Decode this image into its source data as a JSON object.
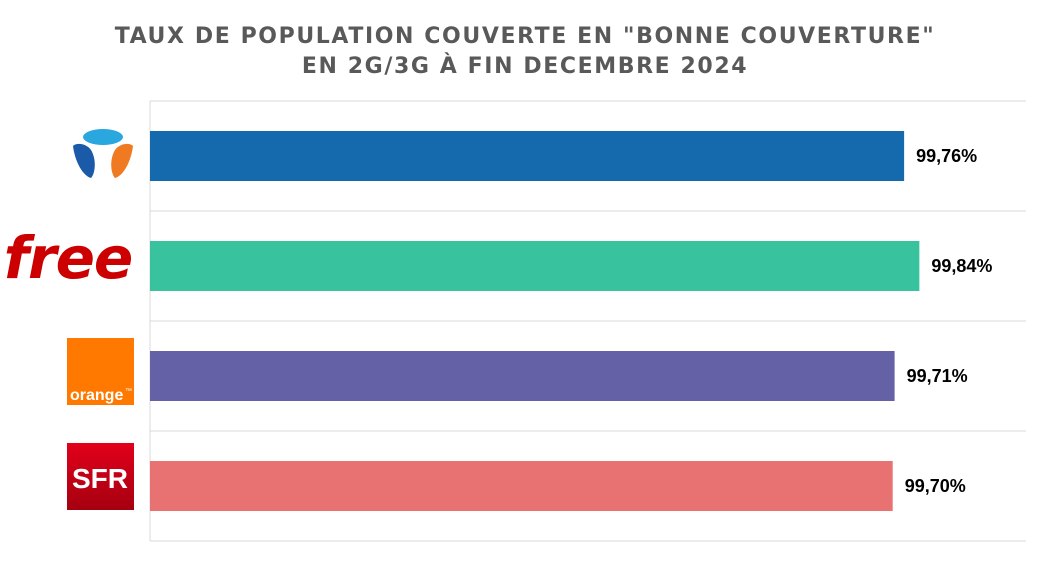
{
  "chart_data": {
    "type": "bar",
    "orientation": "horizontal",
    "title": "TAUX DE POPULATION COUVERTE EN \"BONNE COUVERTURE\"",
    "subtitle": "EN 2G/3G À FIN DECEMBRE 2024",
    "categories": [
      "Bouygues Telecom",
      "free",
      "orange",
      "SFR"
    ],
    "values": [
      99.76,
      99.84,
      99.71,
      99.7
    ],
    "value_labels": [
      "99,76%",
      "99,84%",
      "99,71%",
      "99,70%"
    ],
    "colors": [
      "#156aae",
      "#38c29e",
      "#6561a7",
      "#e87172"
    ],
    "xlim": [
      95.8,
      100.4
    ],
    "grid": true,
    "logos": {
      "free_text": "free",
      "orange_text": "orange",
      "orange_tm": "™",
      "sfr_text": "SFR"
    }
  }
}
